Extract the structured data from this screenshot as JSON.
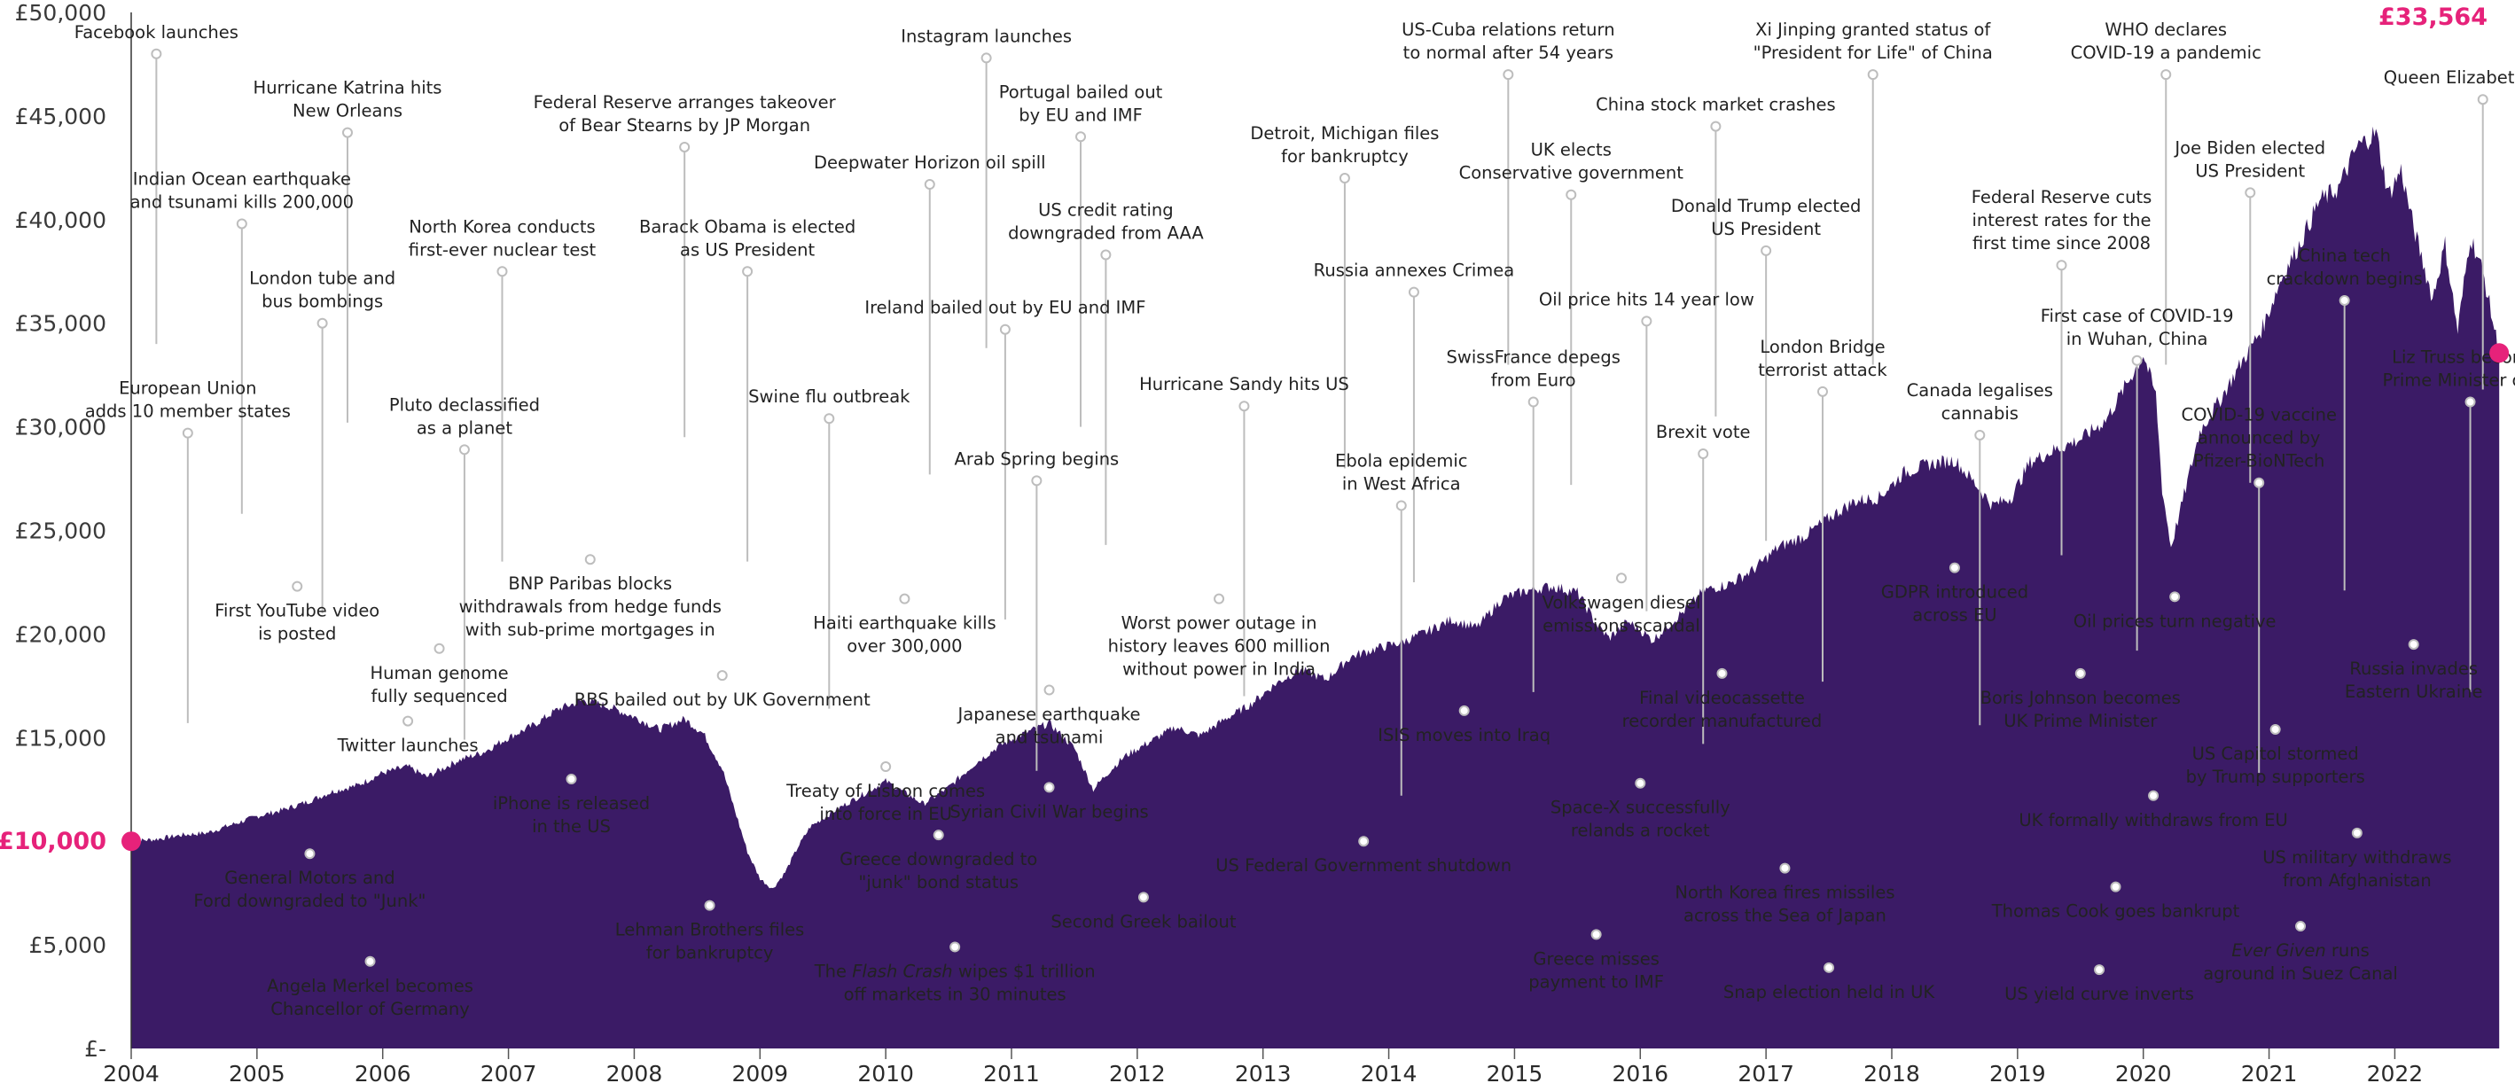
{
  "chart_data": {
    "type": "area",
    "title": "",
    "xlabel": "",
    "ylabel": "",
    "xlim": [
      2004,
      2022.85
    ],
    "ylim": [
      0,
      50000
    ],
    "grid": false,
    "colors": {
      "area": "#3b1b66",
      "accent": "#e6227a",
      "leader": "#bdbdbd"
    },
    "y_ticks": [
      {
        "value": 0,
        "label": "£-"
      },
      {
        "value": 5000,
        "label": "£5,000"
      },
      {
        "value": 10000,
        "label": "£10,000"
      },
      {
        "value": 15000,
        "label": "£15,000"
      },
      {
        "value": 20000,
        "label": "£20,000"
      },
      {
        "value": 25000,
        "label": "£25,000"
      },
      {
        "value": 30000,
        "label": "£30,000"
      },
      {
        "value": 35000,
        "label": "£35,000"
      },
      {
        "value": 40000,
        "label": "£40,000"
      },
      {
        "value": 45000,
        "label": "£45,000"
      },
      {
        "value": 50000,
        "label": "£50,000"
      }
    ],
    "x_ticks": [
      "2004",
      "2005",
      "2006",
      "2007",
      "2008",
      "2009",
      "2010",
      "2011",
      "2012",
      "2013",
      "2014",
      "2015",
      "2016",
      "2017",
      "2018",
      "2019",
      "2020",
      "2021",
      "2022"
    ],
    "start": {
      "x": 2004.0,
      "y": 10000,
      "label": "£10,000"
    },
    "end": {
      "x": 2022.83,
      "y": 33564,
      "label": "£33,564"
    },
    "series": [
      {
        "x": [
          2004.0,
          2004.2,
          2004.4,
          2004.6,
          2004.8,
          2005.0,
          2005.2,
          2005.4,
          2005.6,
          2005.8,
          2006.0,
          2006.2,
          2006.35,
          2006.6,
          2006.8,
          2007.0,
          2007.2,
          2007.4,
          2007.6,
          2007.8,
          2008.0,
          2008.2,
          2008.4,
          2008.55,
          2008.7,
          2008.8,
          2008.9,
          2009.0,
          2009.1,
          2009.2,
          2009.3,
          2009.4,
          2009.6,
          2009.8,
          2010.0,
          2010.3,
          2010.5,
          2010.7,
          2010.9,
          2011.1,
          2011.3,
          2011.5,
          2011.65,
          2011.75,
          2011.9,
          2012.1,
          2012.3,
          2012.5,
          2012.7,
          2012.9,
          2013.1,
          2013.3,
          2013.5,
          2013.7,
          2013.9,
          2014.1,
          2014.3,
          2014.5,
          2014.7,
          2014.9,
          2015.1,
          2015.3,
          2015.5,
          2015.65,
          2015.75,
          2015.9,
          2016.0,
          2016.1,
          2016.2,
          2016.4,
          2016.5,
          2016.7,
          2016.9,
          2017.1,
          2017.3,
          2017.5,
          2017.7,
          2017.9,
          2018.1,
          2018.3,
          2018.5,
          2018.7,
          2018.8,
          2018.95,
          2019.1,
          2019.3,
          2019.5,
          2019.7,
          2019.9,
          2020.0,
          2020.1,
          2020.15,
          2020.22,
          2020.3,
          2020.45,
          2020.6,
          2020.8,
          2020.95,
          2021.1,
          2021.25,
          2021.4,
          2021.55,
          2021.7,
          2021.85,
          2021.95,
          2022.05,
          2022.15,
          2022.3,
          2022.4,
          2022.5,
          2022.6,
          2022.7,
          2022.83
        ],
        "y": [
          10000,
          10100,
          10300,
          10400,
          10800,
          11200,
          11500,
          11900,
          12400,
          12700,
          13300,
          13600,
          13100,
          13900,
          14300,
          15000,
          15600,
          16400,
          16800,
          16500,
          16000,
          15400,
          15900,
          15200,
          13500,
          11500,
          9500,
          8200,
          7700,
          8500,
          9700,
          10700,
          11500,
          12200,
          12900,
          11800,
          12600,
          13700,
          14600,
          15200,
          15700,
          14500,
          12500,
          13200,
          14100,
          14800,
          15500,
          15100,
          15900,
          16600,
          17600,
          18300,
          17800,
          18900,
          19300,
          19600,
          20100,
          20700,
          20300,
          21700,
          22100,
          22300,
          22000,
          20500,
          19800,
          20600,
          20200,
          19700,
          20300,
          21400,
          22100,
          22400,
          23100,
          24200,
          24700,
          25600,
          26400,
          26600,
          27800,
          28200,
          28400,
          27000,
          26200,
          26600,
          28300,
          28900,
          29400,
          30300,
          32400,
          33500,
          31500,
          27000,
          24200,
          26100,
          29800,
          31200,
          33300,
          34800,
          37200,
          38900,
          40900,
          41500,
          43500,
          44200,
          41200,
          42400,
          39600,
          36200,
          38800,
          34600,
          39200,
          37500,
          33564
        ]
      }
    ],
    "annotations": [
      {
        "x": 2004.2,
        "y": 48000,
        "lines": [
          "Facebook launches"
        ]
      },
      {
        "x": 2004.45,
        "y": 29700,
        "lines": [
          "European Union",
          "adds 10 member states"
        ]
      },
      {
        "x": 2004.88,
        "y": 39800,
        "lines": [
          "Indian Ocean earthquake",
          "and tsunami kills 200,000"
        ]
      },
      {
        "x": 2005.32,
        "y": 22300,
        "lines": [
          "First YouTube video",
          "is posted"
        ]
      },
      {
        "x": 2005.42,
        "y": 9400,
        "lines": [
          "General Motors and",
          "Ford downgraded to \"Junk\""
        ]
      },
      {
        "x": 2005.52,
        "y": 35000,
        "lines": [
          "London tube and",
          "bus bombings"
        ]
      },
      {
        "x": 2005.72,
        "y": 44200,
        "lines": [
          "Hurricane Katrina hits",
          "New Orleans"
        ]
      },
      {
        "x": 2005.9,
        "y": 4200,
        "lines": [
          "Angela Merkel becomes",
          "Chancellor of Germany"
        ]
      },
      {
        "x": 2006.2,
        "y": 15800,
        "lines": [
          "Twitter launches"
        ]
      },
      {
        "x": 2006.45,
        "y": 19300,
        "lines": [
          "Human genome",
          "fully sequenced"
        ]
      },
      {
        "x": 2006.65,
        "y": 28900,
        "lines": [
          "Pluto declassified",
          "as a planet"
        ]
      },
      {
        "x": 2006.95,
        "y": 37500,
        "lines": [
          "North Korea conducts",
          "first-ever nuclear test"
        ]
      },
      {
        "x": 2007.5,
        "y": 13000,
        "lines": [
          "iPhone is released",
          "in the US"
        ]
      },
      {
        "x": 2007.65,
        "y": 23600,
        "lines": [
          "BNP Paribas blocks",
          "withdrawals from hedge funds",
          "with sub-prime mortgages in"
        ]
      },
      {
        "x": 2008.4,
        "y": 43500,
        "lines": [
          "Federal Reserve arranges takeover",
          "of Bear Stearns by JP Morgan"
        ]
      },
      {
        "x": 2008.6,
        "y": 6900,
        "lines": [
          "Lehman Brothers files",
          "for bankruptcy"
        ]
      },
      {
        "x": 2008.7,
        "y": 18000,
        "lines": [
          "RBS bailed out by UK Government"
        ]
      },
      {
        "x": 2008.9,
        "y": 37500,
        "lines": [
          "Barack Obama is elected",
          "as US President"
        ]
      },
      {
        "x": 2009.55,
        "y": 30400,
        "lines": [
          "Swine flu outbreak"
        ]
      },
      {
        "x": 2010.0,
        "y": 13600,
        "lines": [
          "Treaty of Lisbon comes",
          "into force in EU"
        ]
      },
      {
        "x": 2010.15,
        "y": 21700,
        "lines": [
          "Haiti earthquake kills",
          "over 300,000"
        ]
      },
      {
        "x": 2010.35,
        "y": 41700,
        "lines": [
          "Deepwater Horizon oil spill"
        ]
      },
      {
        "x": 2010.42,
        "y": 10300,
        "lines": [
          "Greece downgraded to",
          "\"junk\" bond status"
        ]
      },
      {
        "x": 2010.55,
        "y": 4900,
        "lines": [
          "The Flash Crash wipes $1 trillion",
          "off markets in 30 minutes"
        ],
        "italic_word": "Flash Crash"
      },
      {
        "x": 2010.8,
        "y": 47800,
        "lines": [
          "Instagram launches"
        ]
      },
      {
        "x": 2010.95,
        "y": 34700,
        "lines": [
          "Ireland bailed out by EU and IMF"
        ]
      },
      {
        "x": 2011.2,
        "y": 27400,
        "lines": [
          "Arab Spring begins"
        ]
      },
      {
        "x": 2011.3,
        "y": 12600,
        "lines": [
          "Syrian Civil War begins"
        ]
      },
      {
        "x": 2011.3,
        "y": 17300,
        "lines": [
          "Japanese earthquake",
          "and tsunami"
        ]
      },
      {
        "x": 2011.55,
        "y": 44000,
        "lines": [
          "Portugal bailed out",
          "by EU and IMF"
        ]
      },
      {
        "x": 2011.75,
        "y": 38300,
        "lines": [
          "US credit rating",
          "downgraded from AAA"
        ]
      },
      {
        "x": 2012.05,
        "y": 7300,
        "lines": [
          "Second Greek bailout"
        ]
      },
      {
        "x": 2012.65,
        "y": 21700,
        "lines": [
          "Worst power outage in",
          "history leaves 600 million",
          "without power in India"
        ]
      },
      {
        "x": 2012.85,
        "y": 31000,
        "lines": [
          "Hurricane Sandy hits US"
        ]
      },
      {
        "x": 2013.65,
        "y": 42000,
        "lines": [
          "Detroit, Michigan files",
          "for bankruptcy"
        ]
      },
      {
        "x": 2013.8,
        "y": 10000,
        "lines": [
          "US Federal Government shutdown"
        ]
      },
      {
        "x": 2014.1,
        "y": 26200,
        "lines": [
          "Ebola epidemic",
          "in West Africa"
        ]
      },
      {
        "x": 2014.2,
        "y": 36500,
        "lines": [
          "Russia annexes Crimea"
        ]
      },
      {
        "x": 2014.6,
        "y": 16300,
        "lines": [
          "ISIS moves into Iraq"
        ]
      },
      {
        "x": 2014.95,
        "y": 47000,
        "lines": [
          "US-Cuba relations return",
          "to normal after 54 years"
        ]
      },
      {
        "x": 2015.15,
        "y": 31200,
        "lines": [
          "SwissFrance depegs",
          "from Euro"
        ]
      },
      {
        "x": 2015.45,
        "y": 41200,
        "lines": [
          "UK elects",
          "Conservative government"
        ]
      },
      {
        "x": 2015.65,
        "y": 5500,
        "lines": [
          "Greece misses",
          "payment to IMF"
        ]
      },
      {
        "x": 2015.85,
        "y": 22700,
        "lines": [
          "Volkswagen diesel",
          "emissions scandal"
        ]
      },
      {
        "x": 2016.0,
        "y": 12800,
        "lines": [
          "Space-X successfully",
          "relands a rocket"
        ]
      },
      {
        "x": 2016.05,
        "y": 35100,
        "lines": [
          "Oil price hits 14 year low"
        ]
      },
      {
        "x": 2016.5,
        "y": 28700,
        "lines": [
          "Brexit vote"
        ]
      },
      {
        "x": 2016.6,
        "y": 44500,
        "lines": [
          "China stock market crashes"
        ]
      },
      {
        "x": 2016.65,
        "y": 18100,
        "lines": [
          "Final videocassette",
          "recorder manufactured"
        ]
      },
      {
        "x": 2017.0,
        "y": 38500,
        "lines": [
          "Donald Trump elected",
          "US President"
        ]
      },
      {
        "x": 2017.15,
        "y": 8700,
        "lines": [
          "North Korea fires missiles",
          "across the Sea of Japan"
        ]
      },
      {
        "x": 2017.45,
        "y": 31700,
        "lines": [
          "London Bridge",
          "terrorist attack"
        ]
      },
      {
        "x": 2017.5,
        "y": 3900,
        "lines": [
          "Snap election held in UK"
        ]
      },
      {
        "x": 2017.85,
        "y": 47000,
        "lines": [
          "Xi Jinping granted status of",
          "\"President for Life\" of China"
        ]
      },
      {
        "x": 2018.5,
        "y": 23200,
        "lines": [
          "GDPR introduced",
          "across EU"
        ]
      },
      {
        "x": 2018.7,
        "y": 29600,
        "lines": [
          "Canada legalises",
          "cannabis"
        ]
      },
      {
        "x": 2019.35,
        "y": 37800,
        "lines": [
          "Federal Reserve cuts",
          "interest rates for the",
          "first time since 2008"
        ]
      },
      {
        "x": 2019.5,
        "y": 18100,
        "lines": [
          "Boris Johnson becomes",
          "UK Prime Minister"
        ]
      },
      {
        "x": 2019.65,
        "y": 3800,
        "lines": [
          "US yield curve inverts"
        ]
      },
      {
        "x": 2019.78,
        "y": 7800,
        "lines": [
          "Thomas Cook goes bankrupt"
        ]
      },
      {
        "x": 2019.95,
        "y": 33200,
        "lines": [
          "First case of COVID-19",
          "in Wuhan, China"
        ]
      },
      {
        "x": 2020.08,
        "y": 12200,
        "lines": [
          "UK formally withdraws from EU"
        ]
      },
      {
        "x": 2020.18,
        "y": 47000,
        "lines": [
          "WHO declares",
          "COVID-19 a pandemic"
        ]
      },
      {
        "x": 2020.25,
        "y": 21800,
        "lines": [
          "Oil prices turn negative"
        ]
      },
      {
        "x": 2020.85,
        "y": 41300,
        "lines": [
          "Joe Biden elected",
          "US President"
        ]
      },
      {
        "x": 2020.92,
        "y": 27300,
        "lines": [
          "COVID-19 vaccine",
          "announced by",
          "Pfizer-BioNTech"
        ]
      },
      {
        "x": 2021.05,
        "y": 15400,
        "lines": [
          "US Capitol stormed",
          "by Trump supporters"
        ]
      },
      {
        "x": 2021.25,
        "y": 5900,
        "lines": [
          "Ever Given runs",
          "aground in Suez Canal"
        ],
        "italic_word": "Ever Given"
      },
      {
        "x": 2021.6,
        "y": 36100,
        "lines": [
          "China tech",
          "crackdown begins"
        ]
      },
      {
        "x": 2021.7,
        "y": 10400,
        "lines": [
          "US military withdraws",
          "from Afghanistan"
        ]
      },
      {
        "x": 2022.15,
        "y": 19500,
        "lines": [
          "Russia invades",
          "Eastern Ukraine"
        ]
      },
      {
        "x": 2022.6,
        "y": 31200,
        "lines": [
          "Liz Truss becomes",
          "Prime Minister of UK"
        ]
      },
      {
        "x": 2022.7,
        "y": 45800,
        "lines": [
          "Queen Elizabeth II dies"
        ]
      }
    ]
  }
}
